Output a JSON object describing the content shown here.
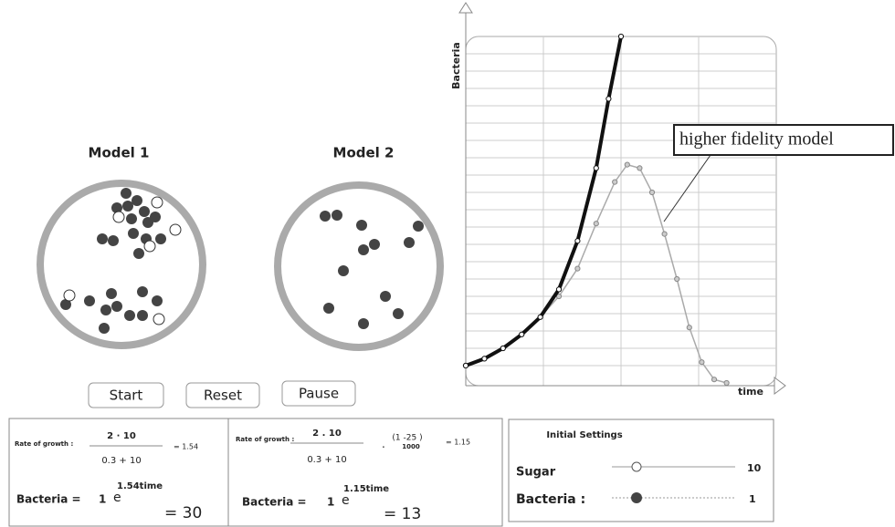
{
  "models": [
    {
      "title": "Model 1"
    },
    {
      "title": "Model 2"
    }
  ],
  "buttons": [
    "Start",
    "Reset",
    "Pause"
  ],
  "formulas": [
    {
      "rate_label": "Rate of growth :",
      "numerator": "2 · 10",
      "denominator": "0.3 + 10",
      "rate_result": "= 1.54",
      "bacteria_label": "Bacteria =",
      "coefficient": "1",
      "base": "e",
      "exponent": "1.54time",
      "bacteria_result": "= 30"
    },
    {
      "rate_label": "Rate of growth :",
      "numerator": "2 . 10",
      "denominator": "0.3 + 10",
      "factor_sep": "·",
      "factor_numerator": "(1 -25 )",
      "factor_denominator": "1000",
      "rate_result": "= 1.15",
      "bacteria_label": "Bacteria =",
      "coefficient": "1",
      "base": "e",
      "exponent": "1.15time",
      "bacteria_result": "= 13"
    }
  ],
  "settings": {
    "title": "Initial Settings",
    "sliders": [
      {
        "label": "Sugar",
        "value": "10"
      },
      {
        "label": "Bacteria :",
        "value": "1"
      }
    ]
  },
  "chart_data": {
    "type": "line",
    "y_label": "Bacteria",
    "x_label": "time",
    "annotation": "higher fidelity model",
    "xlim": [
      0,
      100
    ],
    "ylim": [
      0,
      100
    ],
    "series": [
      {
        "color": "#111111",
        "x": [
          0,
          6,
          12,
          18,
          24,
          30,
          36,
          42,
          46,
          50
        ],
        "values": [
          5,
          7,
          10,
          14,
          19,
          27,
          41,
          62,
          82,
          100
        ]
      },
      {
        "color": "#aaaaaa",
        "x": [
          0,
          6,
          12,
          18,
          24,
          30,
          36,
          42,
          48,
          52,
          56,
          60,
          64,
          68,
          72,
          76,
          80,
          84
        ],
        "values": [
          5,
          7,
          10,
          14,
          19,
          25,
          33,
          46,
          58,
          63,
          62,
          55,
          43,
          30,
          16,
          6,
          1,
          0
        ]
      }
    ]
  }
}
